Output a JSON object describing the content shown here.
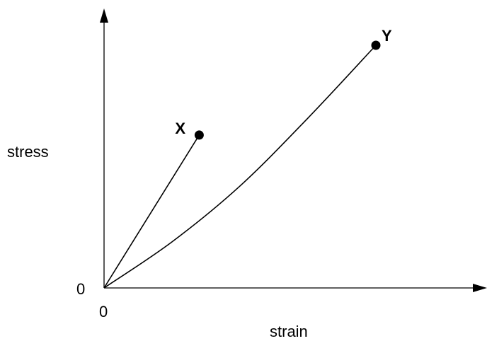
{
  "chart_data": {
    "type": "line",
    "title": "",
    "xlabel": "strain",
    "ylabel": "stress",
    "x_ticks": [
      "0"
    ],
    "y_ticks": [
      "0"
    ],
    "grid": false,
    "legend": "none",
    "series": [
      {
        "name": "X",
        "shape": "straight",
        "points": [
          {
            "x": 0,
            "y": 0
          },
          {
            "x": 0.35,
            "y": 0.63
          }
        ]
      },
      {
        "name": "Y",
        "shape": "curve",
        "points": [
          {
            "x": 0,
            "y": 0
          },
          {
            "x": 0.25,
            "y": 0.19
          },
          {
            "x": 0.5,
            "y": 0.42
          },
          {
            "x": 0.75,
            "y": 0.7
          },
          {
            "x": 1.0,
            "y": 1.0
          }
        ]
      }
    ],
    "point_labels": [
      {
        "text": "X",
        "series": "X"
      },
      {
        "text": "Y",
        "series": "Y"
      }
    ]
  }
}
